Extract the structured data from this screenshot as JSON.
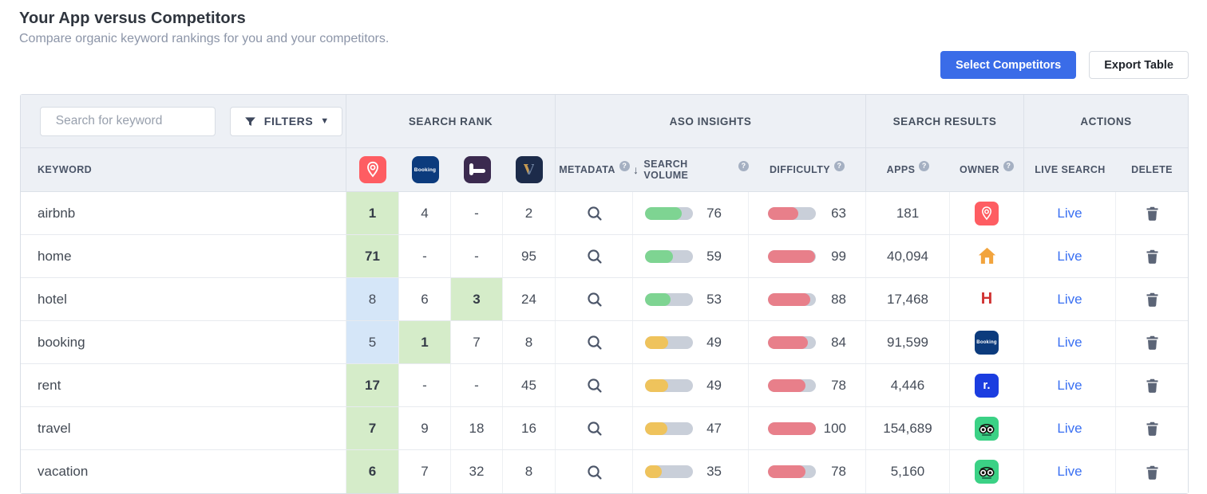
{
  "page": {
    "title": "Your App versus Competitors",
    "subtitle": "Compare organic keyword rankings for you and your competitors.",
    "select_competitors_label": "Select Competitors",
    "export_table_label": "Export Table"
  },
  "toolbar": {
    "search_placeholder": "Search for keyword",
    "filters_label": "FILTERS"
  },
  "colors": {
    "accent_blue": "#3a6ce8",
    "link_blue": "#3a70f2",
    "header_bg": "#edf0f5",
    "highlight_green": "#d5ecc9",
    "highlight_blue": "#d5e6f8",
    "levels": {
      "green": "#7ed492",
      "yellow": "#efc35c",
      "red": "#e87f8a"
    }
  },
  "table": {
    "help_badge": "?",
    "sort_arrow": "↓",
    "groups": [
      "SEARCH RANK",
      "ASO INSIGHTS",
      "SEARCH RESULTS",
      "ACTIONS"
    ],
    "columns": {
      "keyword": "KEYWORD",
      "metadata": "METADATA",
      "search_volume": "SEARCH VOLUME",
      "difficulty": "DIFFICULTY",
      "apps": "APPS",
      "owner": "OWNER",
      "live_search": "LIVE SEARCH",
      "delete": "DELETE"
    },
    "competitor_apps": [
      "Airbnb",
      "Booking.com",
      "HotelTonight",
      "Vrbo"
    ],
    "rows": [
      {
        "keyword": "airbnb",
        "ranks": [
          {
            "v": "1",
            "hl": "green"
          },
          {
            "v": "4"
          },
          {
            "v": "-"
          },
          {
            "v": "2"
          }
        ],
        "volume": {
          "value": 76,
          "level": "green"
        },
        "difficulty": {
          "value": 63,
          "level": "red"
        },
        "apps": "181",
        "owner": "Airbnb",
        "live": "Live"
      },
      {
        "keyword": "home",
        "ranks": [
          {
            "v": "71",
            "hl": "green"
          },
          {
            "v": "-"
          },
          {
            "v": "-"
          },
          {
            "v": "95"
          }
        ],
        "volume": {
          "value": 59,
          "level": "green"
        },
        "difficulty": {
          "value": 99,
          "level": "red"
        },
        "apps": "40,094",
        "owner": "Home",
        "live": "Live"
      },
      {
        "keyword": "hotel",
        "ranks": [
          {
            "v": "8",
            "hl": "blue"
          },
          {
            "v": "6"
          },
          {
            "v": "3",
            "hl": "green"
          },
          {
            "v": "24"
          }
        ],
        "volume": {
          "value": 53,
          "level": "green"
        },
        "difficulty": {
          "value": 88,
          "level": "red"
        },
        "apps": "17,468",
        "owner": "Hotels.com",
        "live": "Live"
      },
      {
        "keyword": "booking",
        "ranks": [
          {
            "v": "5",
            "hl": "blue"
          },
          {
            "v": "1",
            "hl": "green"
          },
          {
            "v": "7"
          },
          {
            "v": "8"
          }
        ],
        "volume": {
          "value": 49,
          "level": "yellow"
        },
        "difficulty": {
          "value": 84,
          "level": "red"
        },
        "apps": "91,599",
        "owner": "Booking.com",
        "live": "Live"
      },
      {
        "keyword": "rent",
        "ranks": [
          {
            "v": "17",
            "hl": "green"
          },
          {
            "v": "-"
          },
          {
            "v": "-"
          },
          {
            "v": "45"
          }
        ],
        "volume": {
          "value": 49,
          "level": "yellow"
        },
        "difficulty": {
          "value": 78,
          "level": "red"
        },
        "apps": "4,446",
        "owner": "Rent.com",
        "live": "Live"
      },
      {
        "keyword": "travel",
        "ranks": [
          {
            "v": "7",
            "hl": "green"
          },
          {
            "v": "9"
          },
          {
            "v": "18"
          },
          {
            "v": "16"
          }
        ],
        "volume": {
          "value": 47,
          "level": "yellow"
        },
        "difficulty": {
          "value": 100,
          "level": "red"
        },
        "apps": "154,689",
        "owner": "Tripadvisor",
        "live": "Live"
      },
      {
        "keyword": "vacation",
        "ranks": [
          {
            "v": "6",
            "hl": "green"
          },
          {
            "v": "7"
          },
          {
            "v": "32"
          },
          {
            "v": "8"
          }
        ],
        "volume": {
          "value": 35,
          "level": "yellow"
        },
        "difficulty": {
          "value": 78,
          "level": "red"
        },
        "apps": "5,160",
        "owner": "Tripadvisor",
        "live": "Live"
      }
    ]
  }
}
